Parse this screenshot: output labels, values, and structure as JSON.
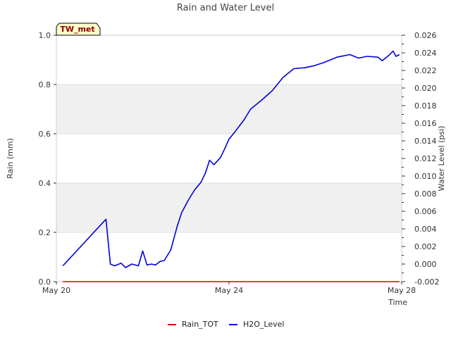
{
  "chart_data": {
    "type": "line",
    "title": "Rain and Water Level",
    "badge": "TW_met",
    "xlabel": "Time",
    "ylabel_left": "Rain (mm)",
    "ylabel_right": "Water Level (psi)",
    "x_ticks": [
      "May 20",
      "May 24",
      "May 28"
    ],
    "x_tick_days": [
      0,
      4,
      8
    ],
    "xlim_days": [
      0,
      8
    ],
    "ylim_left": [
      0,
      1.0
    ],
    "ylim_right": [
      -0.002,
      0.026
    ],
    "left_ticks": [
      "0.0",
      "0.2",
      "0.4",
      "0.6",
      "0.8",
      "1.0"
    ],
    "right_ticks": [
      "-0.002",
      "0.000",
      "0.002",
      "0.004",
      "0.006",
      "0.008",
      "0.010",
      "0.012",
      "0.014",
      "0.016",
      "0.018",
      "0.020",
      "0.022",
      "0.024",
      "0.026"
    ],
    "legend": [
      "Rain_TOT",
      "H2O_Level"
    ],
    "colors": {
      "rain": "#dd0000",
      "h2o": "#0000dd",
      "band": "#f0f0f0",
      "grid": "#e2e2e2",
      "badge_bg": "#ffffcc"
    },
    "series": [
      {
        "name": "Rain_TOT",
        "axis": "left",
        "x_days": [
          0.15,
          7.95
        ],
        "values": [
          0.0,
          0.0
        ]
      },
      {
        "name": "H2O_Level",
        "axis": "right",
        "x_days": [
          0.15,
          1.15,
          1.25,
          1.35,
          1.5,
          1.6,
          1.75,
          1.9,
          2.0,
          2.1,
          2.2,
          2.3,
          2.4,
          2.5,
          2.65,
          2.8,
          2.9,
          3.05,
          3.2,
          3.35,
          3.45,
          3.55,
          3.65,
          3.8,
          3.9,
          4.0,
          4.15,
          4.35,
          4.5,
          4.75,
          5.0,
          5.25,
          5.5,
          5.75,
          5.95,
          6.2,
          6.5,
          6.8,
          7.0,
          7.2,
          7.45,
          7.55,
          7.7,
          7.8,
          7.87,
          7.95
        ],
        "values": [
          -0.0002,
          0.0051,
          0.0,
          -0.0002,
          0.0001,
          -0.0004,
          0.0,
          -0.0002,
          0.0015,
          -0.0001,
          0.0,
          -0.0001,
          0.0003,
          0.0004,
          0.0016,
          0.0043,
          0.0058,
          0.0072,
          0.0084,
          0.0093,
          0.0103,
          0.0118,
          0.0113,
          0.0121,
          0.0131,
          0.0142,
          0.0151,
          0.0164,
          0.0176,
          0.0186,
          0.0197,
          0.0212,
          0.0222,
          0.0223,
          0.0225,
          0.0229,
          0.0235,
          0.0238,
          0.0234,
          0.0236,
          0.0235,
          0.0231,
          0.0237,
          0.0242,
          0.0236,
          0.0238
        ]
      }
    ]
  }
}
